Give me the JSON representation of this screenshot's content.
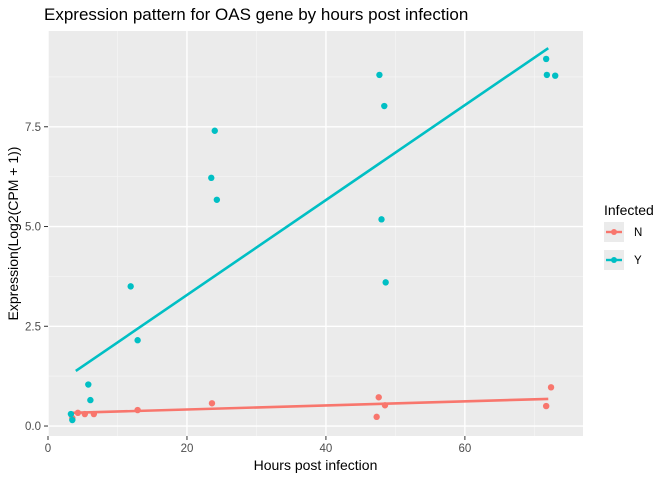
{
  "chart_data": {
    "type": "scatter",
    "title": "Expression pattern for OAS gene by hours post infection",
    "xlabel": "Hours post infection",
    "ylabel": "Expression(Log2(CPM + 1))",
    "xlim": [
      0,
      77
    ],
    "ylim": [
      -0.25,
      9.9
    ],
    "x_ticks": [
      0,
      20,
      40,
      60
    ],
    "x_tick_labels": [
      "0",
      "20",
      "40",
      "60"
    ],
    "y_ticks": [
      0,
      2.5,
      5,
      7.5
    ],
    "y_tick_labels": [
      "0.0",
      "2.5",
      "5.0",
      "7.5"
    ],
    "grid": true,
    "legend": {
      "title": "Infected",
      "position": "right",
      "entries": [
        {
          "label": "N",
          "color": "#F8766D"
        },
        {
          "label": "Y",
          "color": "#00BFC4"
        }
      ]
    },
    "series": [
      {
        "name": "N",
        "color": "#F8766D",
        "points": [
          {
            "x": 3.5,
            "y": 0.2
          },
          {
            "x": 4.3,
            "y": 0.33
          },
          {
            "x": 5.3,
            "y": 0.3
          },
          {
            "x": 6.6,
            "y": 0.3
          },
          {
            "x": 12.9,
            "y": 0.4
          },
          {
            "x": 23.6,
            "y": 0.57
          },
          {
            "x": 47.3,
            "y": 0.23
          },
          {
            "x": 47.6,
            "y": 0.72
          },
          {
            "x": 48.5,
            "y": 0.52
          },
          {
            "x": 71.7,
            "y": 0.5
          },
          {
            "x": 72.4,
            "y": 0.97
          }
        ],
        "fit": {
          "x": [
            3.5,
            72
          ],
          "y": [
            0.33,
            0.68
          ]
        }
      },
      {
        "name": "Y",
        "color": "#00BFC4",
        "points": [
          {
            "x": 3.3,
            "y": 0.3
          },
          {
            "x": 3.5,
            "y": 0.15
          },
          {
            "x": 5.8,
            "y": 1.04
          },
          {
            "x": 6.1,
            "y": 0.65
          },
          {
            "x": 11.9,
            "y": 3.5
          },
          {
            "x": 12.9,
            "y": 2.15
          },
          {
            "x": 23.5,
            "y": 6.22
          },
          {
            "x": 24.0,
            "y": 7.4
          },
          {
            "x": 24.3,
            "y": 5.67
          },
          {
            "x": 47.7,
            "y": 8.8
          },
          {
            "x": 48.0,
            "y": 5.18
          },
          {
            "x": 48.4,
            "y": 8.02
          },
          {
            "x": 48.6,
            "y": 3.6
          },
          {
            "x": 71.7,
            "y": 9.2
          },
          {
            "x": 71.8,
            "y": 8.8
          },
          {
            "x": 73.0,
            "y": 8.78
          }
        ],
        "fit": {
          "x": [
            4,
            72
          ],
          "y": [
            1.38,
            9.47
          ]
        }
      }
    ]
  }
}
